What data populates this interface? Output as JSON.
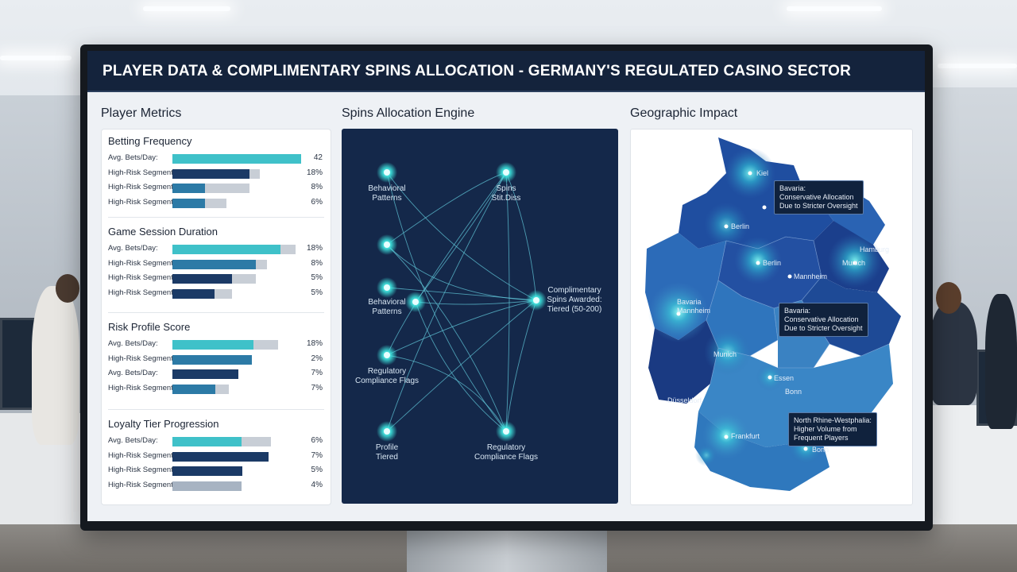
{
  "window": {
    "title": "PLAYER DATA & COMPLIMENTARY SPINS ALLOCATION - GERMANY'S REGULATED CASINO SECTOR"
  },
  "sections": {
    "metrics": "Player Metrics",
    "engine": "Spins Allocation Engine",
    "geo": "Geographic Impact"
  },
  "colors": {
    "titlebar": "#14233c",
    "teal": "#3fc1c9",
    "navy": "#1b3a66",
    "mid_blue": "#2c7aa6",
    "engine_bg": "#14284a",
    "node_glow": "#3ee6e0"
  },
  "metrics": [
    {
      "heading": "Betting Frequency",
      "rows": [
        {
          "label": "Avg. Bets/Day:",
          "value": "42",
          "fill": 0.95,
          "ext": 0.0,
          "color": "#3fc1c9"
        },
        {
          "label": "High-Risk Segment",
          "value": "18%",
          "fill": 0.57,
          "ext": 0.08,
          "color": "#1b3a66"
        },
        {
          "label": "High-Risk Segment",
          "value": "8%",
          "fill": 0.24,
          "ext": 0.33,
          "color": "#2c7aa6"
        },
        {
          "label": "High-Risk Segment",
          "value": "6%",
          "fill": 0.24,
          "ext": 0.16,
          "color": "#2c7aa6"
        }
      ]
    },
    {
      "heading": "Game Session Duration",
      "rows": [
        {
          "label": "Avg. Bets/Day:",
          "value": "18%",
          "fill": 0.8,
          "ext": 0.11,
          "color": "#3fc1c9"
        },
        {
          "label": "High-Risk Segment",
          "value": "8%",
          "fill": 0.62,
          "ext": 0.08,
          "color": "#2c7aa6"
        },
        {
          "label": "High-Risk Segment",
          "value": "5%",
          "fill": 0.44,
          "ext": 0.18,
          "color": "#1b3a66"
        },
        {
          "label": "High-Risk Segment",
          "value": "5%",
          "fill": 0.31,
          "ext": 0.13,
          "color": "#1b3a66"
        }
      ]
    },
    {
      "heading": "Risk Profile Score",
      "rows": [
        {
          "label": "Avg. Bets/Day:",
          "value": "18%",
          "fill": 0.6,
          "ext": 0.18,
          "color": "#3fc1c9"
        },
        {
          "label": "High-Risk Segment",
          "value": "2%",
          "fill": 0.59,
          "ext": 0.0,
          "color": "#2c7aa6"
        },
        {
          "label": "Avg. Bets/Day:",
          "value": "7%",
          "fill": 0.49,
          "ext": 0.0,
          "color": "#1b3a66"
        },
        {
          "label": "High-Risk Segment",
          "value": "7%",
          "fill": 0.32,
          "ext": 0.1,
          "color": "#2c7aa6"
        }
      ]
    },
    {
      "heading": "Loyalty Tier Progression",
      "rows": [
        {
          "label": "Avg. Bets/Day:",
          "value": "6%",
          "fill": 0.51,
          "ext": 0.22,
          "color": "#3fc1c9"
        },
        {
          "label": "High-Risk Segment",
          "value": "7%",
          "fill": 0.71,
          "ext": 0.0,
          "color": "#1b3a66"
        },
        {
          "label": "High-Risk Segment",
          "value": "5%",
          "fill": 0.52,
          "ext": 0.0,
          "color": "#1b3a66"
        },
        {
          "label": "High-Risk Segment",
          "value": "4%",
          "fill": 0.51,
          "ext": 0.0,
          "color": "#a7b3c2"
        }
      ]
    }
  ],
  "engine": {
    "nodes": [
      {
        "id": "behavioral-1",
        "label": "Behavioral\nPatterns"
      },
      {
        "id": "spins-top",
        "label": "Spins\nStit.Diss"
      },
      {
        "id": "unlabeled",
        "label": ""
      },
      {
        "id": "behavioral-2",
        "label": "Behavioral\nPatterns"
      },
      {
        "id": "center",
        "label": ""
      },
      {
        "id": "output",
        "label": "Complimentary\nSpins Awarded:\nTiered (50-200)"
      },
      {
        "id": "regulatory-1",
        "label": "Regulatory\nCompliance Flags"
      },
      {
        "id": "profile",
        "label": "Profile\nTiered"
      },
      {
        "id": "regulatory-2",
        "label": "Regulatory\nCompliance Flags"
      }
    ]
  },
  "geo": {
    "cities": [
      {
        "name": "Kiel"
      },
      {
        "name": "Berlin"
      },
      {
        "name": "Berlin"
      },
      {
        "name": "Hamburg"
      },
      {
        "name": "Munich"
      },
      {
        "name": "Mannheim"
      },
      {
        "name": "Bavaria\nMannheim"
      },
      {
        "name": "Munich"
      },
      {
        "name": "Essen"
      },
      {
        "name": "Bonn"
      },
      {
        "name": "Düsseldorf"
      },
      {
        "name": "Frankfurt"
      },
      {
        "name": "Bonn"
      }
    ],
    "callouts": [
      {
        "text": "Bavaria:\nConservative Allocation\nDue to Stricter Oversight"
      },
      {
        "text": "Bavaria:\nConservative Allocation\nDue to Stricter Oversight"
      },
      {
        "text": "North Rhine-Westphalia:\nHigher Volume from\nFrequent Players"
      }
    ]
  }
}
